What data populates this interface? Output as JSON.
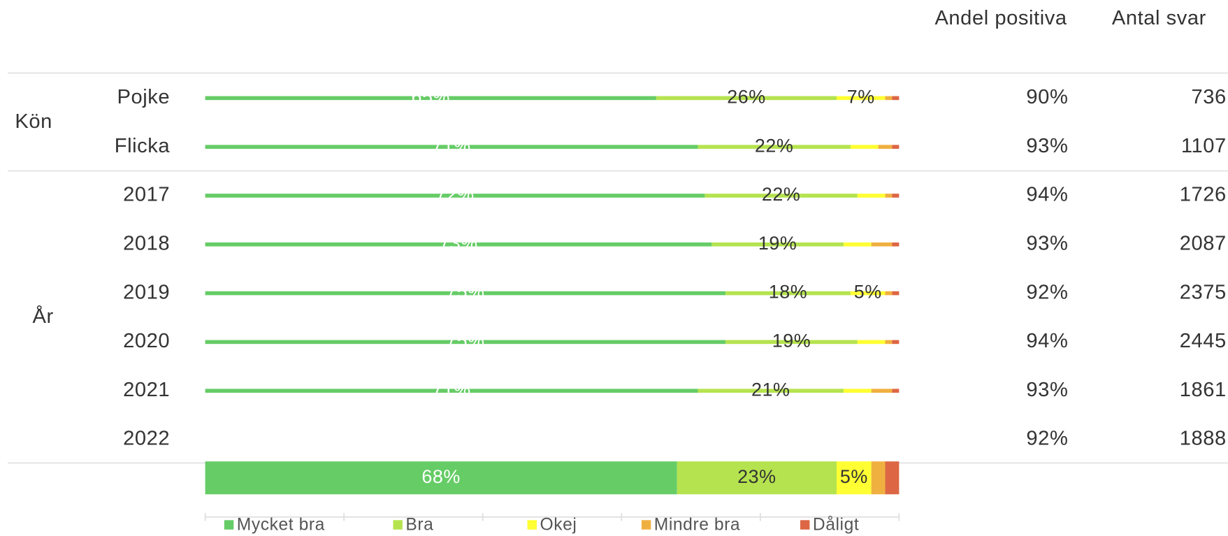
{
  "chart_data": {
    "type": "stacked_bar",
    "orientation": "horizontal",
    "categories": [
      "Pojke",
      "Flicka",
      "2017",
      "2018",
      "2019",
      "2020",
      "2021",
      "2022",
      null
    ],
    "groups": [
      {
        "name": "Kön",
        "start": 0,
        "end": 1
      },
      {
        "name": "År",
        "start": 2,
        "end": 7
      }
    ],
    "xlim": [
      0,
      100
    ],
    "series": [
      {
        "name": "Mycket bra",
        "color": "#66cc66",
        "values": [
          65,
          71,
          72,
          73,
          75,
          75,
          71,
          null,
          68
        ],
        "value_labels": [
          "65%",
          "71%",
          "72%",
          "73%",
          "75%",
          "75%",
          "71%",
          null,
          "68%"
        ]
      },
      {
        "name": "Bra",
        "color": "#b5e34f",
        "values": [
          26,
          22,
          22,
          19,
          18,
          19,
          21,
          null,
          23
        ],
        "value_labels": [
          "26%",
          "22%",
          "22%",
          "19%",
          "18%",
          "19%",
          "21%",
          null,
          "23%"
        ]
      },
      {
        "name": "Okej",
        "color": "#ffff33",
        "values": [
          7,
          4,
          4,
          4,
          5,
          4,
          4,
          null,
          5
        ],
        "value_labels": [
          "7%",
          null,
          null,
          null,
          "5%",
          null,
          null,
          null,
          "5%"
        ]
      },
      {
        "name": "Mindre bra",
        "color": "#f0b040",
        "values": [
          1,
          2,
          1,
          3,
          1,
          1,
          3,
          null,
          2
        ],
        "value_labels": [
          null,
          null,
          null,
          null,
          null,
          null,
          null,
          null,
          null
        ]
      },
      {
        "name": "Dåligt",
        "color": "#dd6644",
        "values": [
          1,
          1,
          1,
          1,
          1,
          1,
          1,
          null,
          2
        ],
        "value_labels": [
          null,
          null,
          null,
          null,
          null,
          null,
          null,
          null,
          null
        ]
      }
    ],
    "columns": [
      {
        "title": "Andel positiva",
        "values": [
          90,
          93,
          94,
          93,
          92,
          94,
          93,
          92,
          null
        ],
        "value_labels": [
          "90%",
          "93%",
          "94%",
          "93%",
          "92%",
          "94%",
          "93%",
          "92%",
          null
        ]
      },
      {
        "title": "Antal svar",
        "values": [
          736,
          1107,
          1726,
          2087,
          2375,
          2445,
          1861,
          1888,
          null
        ]
      }
    ]
  }
}
